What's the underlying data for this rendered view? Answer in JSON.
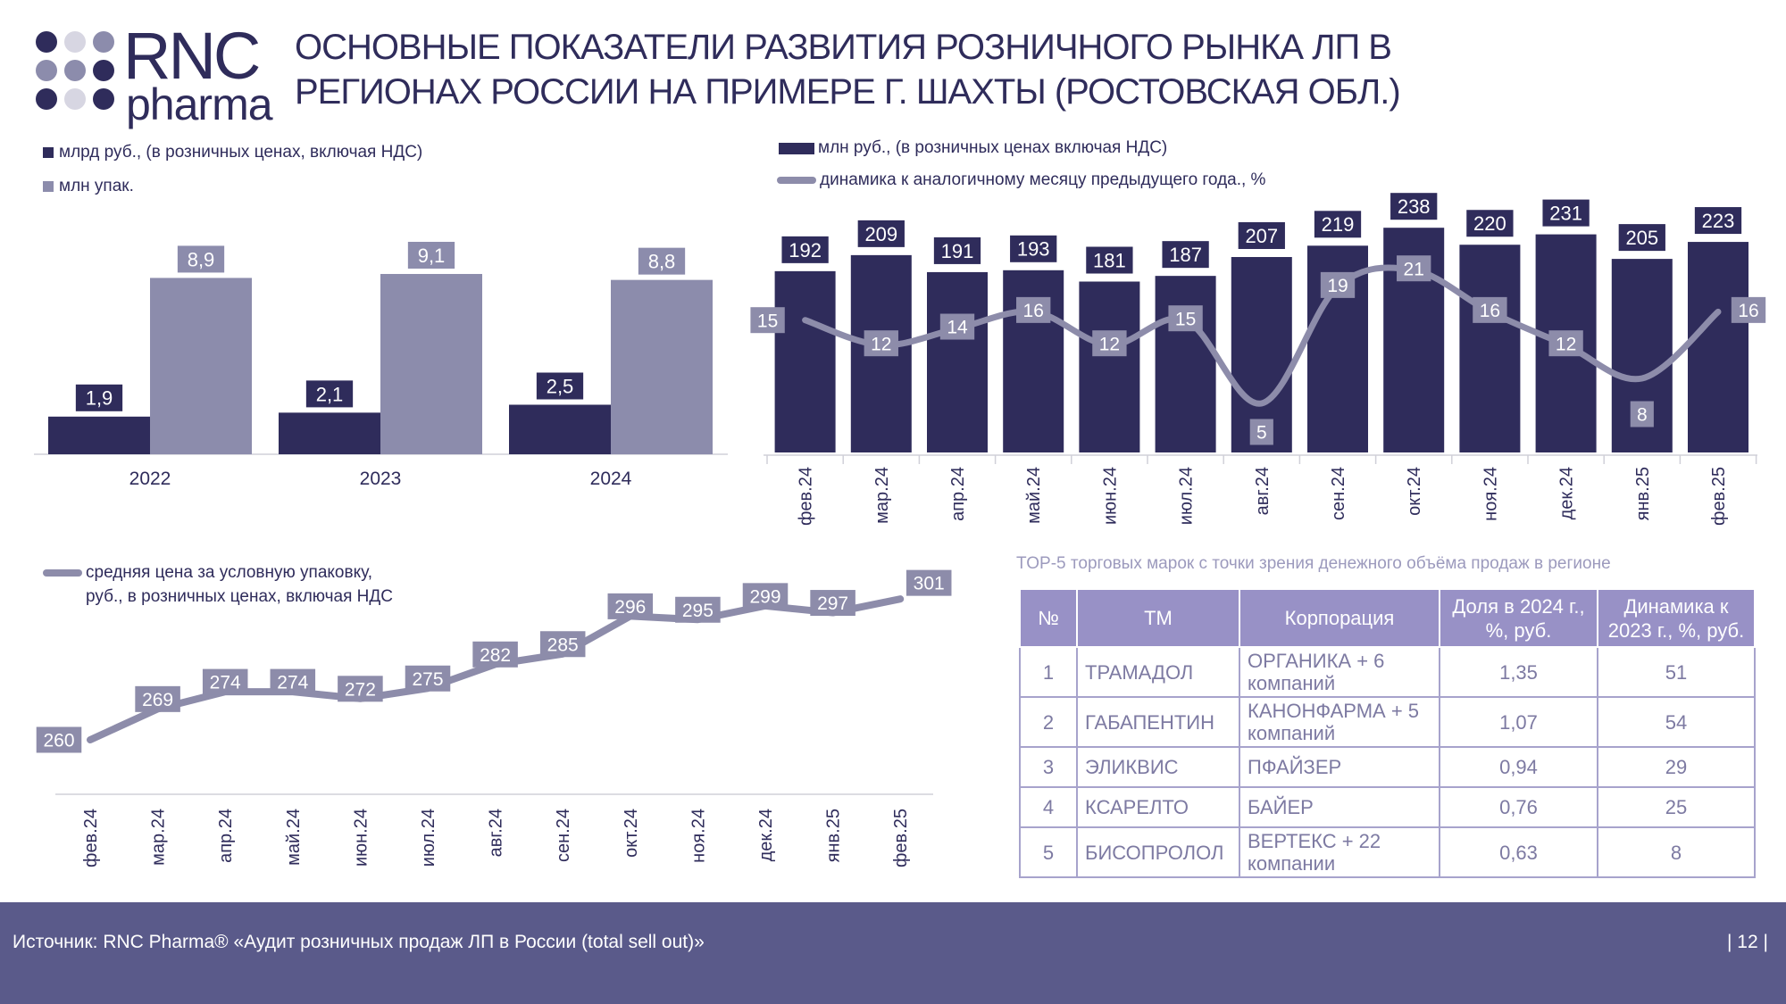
{
  "logo": {
    "text_main": "RNC",
    "text_sub": "pharma"
  },
  "title": "ОСНОВНЫЕ ПОКАЗАТЕЛИ РАЗВИТИЯ РОЗНИЧНОГО РЫНКА ЛП В РЕГИОНАХ РОССИИ НА ПРИМЕРЕ Г. ШАХТЫ (РОСТОВСКАЯ ОБЛ.)",
  "colors": {
    "dark": "#2f2c5b",
    "light": "#8c8cac",
    "line": "#8d8caa",
    "footer": "#5a5a8a",
    "table_head": "#9891c6"
  },
  "chart_data": [
    {
      "id": "annual",
      "type": "bar",
      "categories": [
        "2022",
        "2023",
        "2024"
      ],
      "series": [
        {
          "name": "млрд руб., (в розничных ценах, включая НДС)",
          "values": [
            1.9,
            2.1,
            2.5
          ],
          "labels": [
            "1,9",
            "2,1",
            "2,5"
          ],
          "color": "#2f2c5b"
        },
        {
          "name": "млн упак.",
          "values": [
            8.9,
            9.1,
            8.8
          ],
          "labels": [
            "8,9",
            "9,1",
            "8,8"
          ],
          "color": "#8c8cac"
        }
      ]
    },
    {
      "id": "monthly",
      "type": "bar+line",
      "categories": [
        "фев.24",
        "мар.24",
        "апр.24",
        "май.24",
        "июн.24",
        "июл.24",
        "авг.24",
        "сен.24",
        "окт.24",
        "ноя.24",
        "дек.24",
        "янв.25",
        "фев.25"
      ],
      "bars": {
        "name": "млн руб., (в розничных ценах включая НДС)",
        "values": [
          192,
          209,
          191,
          193,
          181,
          187,
          207,
          219,
          238,
          220,
          231,
          205,
          223
        ],
        "labels": [
          "192",
          "209",
          "191",
          "193",
          "181",
          "187",
          "207",
          "219",
          "238",
          "220",
          "231",
          "205",
          "223"
        ]
      },
      "line": {
        "name": "динамика к аналогичному месяцу предыдущего года., %",
        "values": [
          15,
          12,
          14,
          16,
          12,
          15,
          5,
          19,
          21,
          16,
          12,
          8,
          16
        ],
        "labels": [
          "15",
          "12",
          "14",
          "16",
          "12",
          "15",
          "5",
          "19",
          "21",
          "16",
          "12",
          "8",
          "16"
        ]
      }
    },
    {
      "id": "price",
      "type": "line",
      "categories": [
        "фев.24",
        "мар.24",
        "апр.24",
        "май.24",
        "июн.24",
        "июл.24",
        "авг.24",
        "сен.24",
        "окт.24",
        "ноя.24",
        "дек.24",
        "янв.25",
        "фев.25"
      ],
      "series": [
        {
          "name": "средняя цена за условную упаковку, руб., в розничных ценах, включая НДС",
          "values": [
            260,
            269,
            274,
            274,
            272,
            275,
            282,
            285,
            296,
            295,
            299,
            297,
            301
          ],
          "labels": [
            "260",
            "269",
            "274",
            "274",
            "272",
            "275",
            "282",
            "285",
            "296",
            "295",
            "299",
            "297",
            "301"
          ]
        }
      ]
    }
  ],
  "legends": {
    "annual_rub": "млрд руб., (в розничных ценах, включая НДС)",
    "annual_pack": "млн упак.",
    "monthly_rub": "млн руб., (в розничных ценах включая НДС)",
    "monthly_dyn": "динамика к аналогичному месяцу предыдущего года., %",
    "price_line1": "средняя цена за условную упаковку,",
    "price_line2": "руб., в розничных ценах, включая НДС"
  },
  "table": {
    "title": "TOP-5  торговых марок с точки зрения денежного объёма продаж в регионе",
    "headers": [
      "№",
      "ТМ",
      "Корпорация",
      "Доля в 2024 г., %, руб.",
      "Динамика к 2023 г., %, руб."
    ],
    "rows": [
      [
        "1",
        "ТРАМАДОЛ",
        "ОРГАНИКА + 6 компаний",
        "1,35",
        "51"
      ],
      [
        "2",
        "ГАБАПЕНТИН",
        "КАНОНФАРМА + 5 компаний",
        "1,07",
        "54"
      ],
      [
        "3",
        "ЭЛИКВИС",
        "ПФАЙЗЕР",
        "0,94",
        "29"
      ],
      [
        "4",
        "КСАРЕЛТО",
        "БАЙЕР",
        "0,76",
        "25"
      ],
      [
        "5",
        "БИСОПРОЛОЛ",
        "ВЕРТЕКС + 22 компании",
        "0,63",
        "8"
      ]
    ]
  },
  "footer": {
    "source": "Источник: RNC Pharma® «Аудит розничных продаж ЛП в России (total sell out)»",
    "page": "| 12 |"
  }
}
